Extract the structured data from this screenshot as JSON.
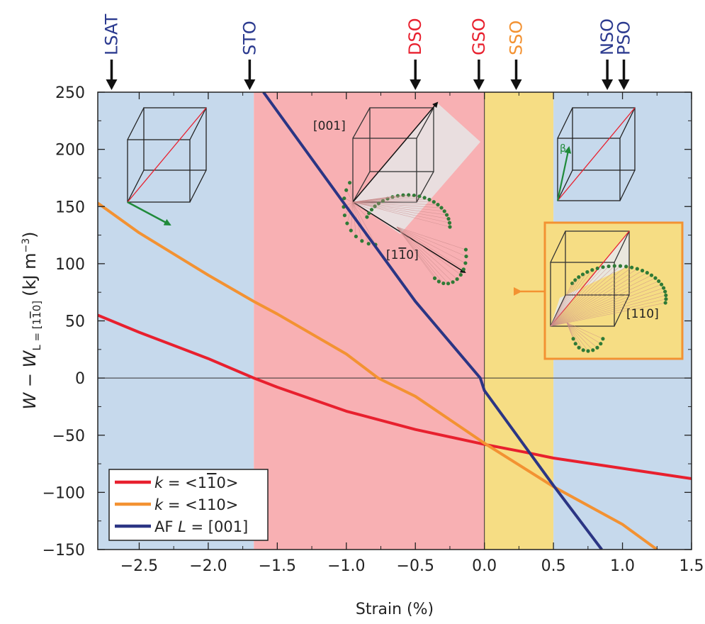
{
  "chart_data": {
    "type": "line",
    "xlabel": "Strain (%)",
    "ylabel_main": "W − W",
    "ylabel_sub": "L = [1",
    "ylabel_sub_bar": "1",
    "ylabel_sub_end": "0]",
    "ylabel_unit": "(kJ m",
    "ylabel_unit_exp": "−3",
    "ylabel_unit_close": ")",
    "xlim": [
      -2.8,
      1.5
    ],
    "ylim": [
      -150,
      250
    ],
    "x_ticks": [
      -2.5,
      -2.0,
      -1.5,
      -1.0,
      -0.5,
      0.0,
      0.5,
      1.0,
      1.5
    ],
    "x_tick_labels": [
      "−2.5",
      "−2.0",
      "−1.5",
      "−1.0",
      "−0.5",
      "0.0",
      "0.5",
      "1.0",
      "1.5"
    ],
    "y_ticks": [
      250,
      200,
      150,
      100,
      50,
      0,
      -50,
      -100,
      -150
    ],
    "y_tick_labels": [
      "250",
      "200",
      "150",
      "100",
      "50",
      "0",
      "−50",
      "−100",
      "−150"
    ],
    "zero_line": true,
    "regions": [
      {
        "from": -2.8,
        "to": -1.67,
        "color": "#c6d9ec"
      },
      {
        "from": -1.67,
        "to": 0.0,
        "color": "#f8b0b3"
      },
      {
        "from": 0.0,
        "to": 0.5,
        "color": "#f6dd84"
      },
      {
        "from": 0.5,
        "to": 1.5,
        "color": "#c6d9ec"
      }
    ],
    "substrates": [
      {
        "name": "LSAT",
        "x": -2.7,
        "color": "#2b3a8f"
      },
      {
        "name": "STO",
        "x": -1.7,
        "color": "#2b3a8f"
      },
      {
        "name": "DSO",
        "x": -0.5,
        "color": "#e8202e"
      },
      {
        "name": "GSO",
        "x": -0.04,
        "color": "#e8202e"
      },
      {
        "name": "SSO",
        "x": 0.23,
        "color": "#f39232"
      },
      {
        "name": "NSO",
        "x": 0.89,
        "color": "#2b3a8f"
      },
      {
        "name": "PSO",
        "x": 1.01,
        "color": "#2b3a8f"
      }
    ],
    "series": [
      {
        "name_prefix": "k",
        "name_rel": " = <1",
        "name_bar": "1",
        "name_end": "0>",
        "color": "#e8202e",
        "x": [
          -2.8,
          -2.5,
          -2.0,
          -1.67,
          -1.5,
          -1.0,
          -0.5,
          0.0,
          0.3,
          0.5,
          1.0,
          1.5
        ],
        "y": [
          55,
          40,
          17,
          0,
          -8,
          -29,
          -45,
          -58,
          -65,
          -70,
          -79,
          -88
        ]
      },
      {
        "name_prefix": "k",
        "name_rel": " = <110>",
        "name_bar": "",
        "name_end": "",
        "color": "#f39232",
        "x": [
          -2.8,
          -2.5,
          -2.0,
          -1.67,
          -1.5,
          -1.0,
          -0.77,
          -0.5,
          0.0,
          0.5,
          1.0,
          1.25
        ],
        "y": [
          153,
          127,
          90,
          67,
          56,
          21,
          0,
          -16,
          -57,
          -95,
          -128,
          -150
        ]
      },
      {
        "name_prefix": "AF ",
        "name_rel": "L",
        "name_bar": "",
        "name_end": " = [001]",
        "color": "#2b3584",
        "x": [
          -1.6,
          -1.0,
          -0.5,
          -0.03,
          0.0,
          0.5,
          0.85
        ],
        "y": [
          250,
          150,
          67,
          0,
          -11,
          -94,
          -150
        ]
      }
    ],
    "legend_position": "bottom-left",
    "annotations": {
      "label_001": "[001]",
      "label_1m10_a": "[1",
      "label_1m10_bar": "1",
      "label_1m10_b": "0]",
      "label_110": "[110]",
      "label_beta": "β"
    }
  }
}
